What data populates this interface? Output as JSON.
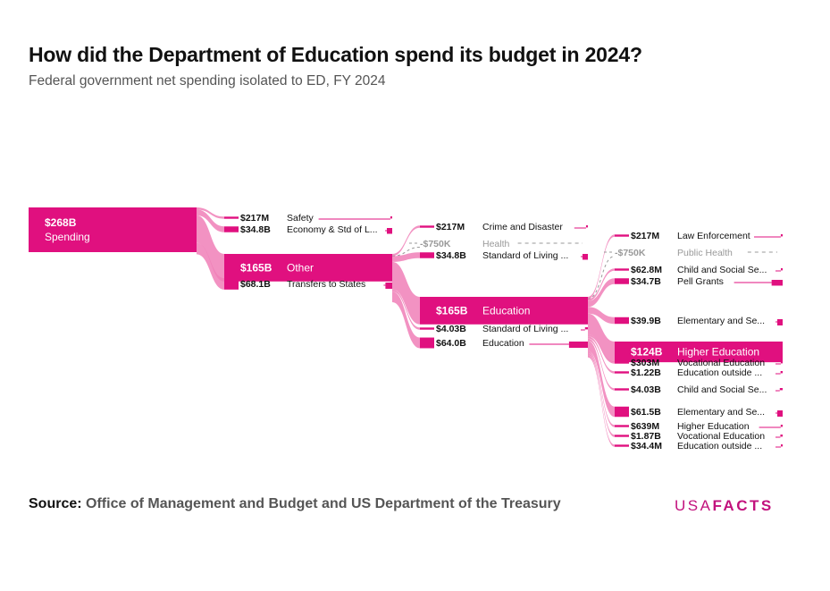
{
  "header": {
    "title": "How did the Department of Education spend its budget in 2024?",
    "subtitle": "Federal government net spending isolated to ED, FY 2024"
  },
  "footer": {
    "source_label": "Source:",
    "source_text": "Office of Management and Budget and US Department of the Treasury",
    "logo_light": "USA",
    "logo_bold": "FACTS"
  },
  "colors": {
    "primary": "#e0107f",
    "link": "#f07fb7",
    "neutral": "#999999",
    "label": "#111111"
  },
  "chart_data": {
    "type": "sankey",
    "root": {
      "label": "Spending",
      "value": 268000000000.0,
      "display": "$268B"
    },
    "levels": [
      [
        {
          "id": "safety",
          "label": "Safety",
          "display": "$217M",
          "value": 217000000.0
        },
        {
          "id": "econ",
          "label": "Economy & Std of L...",
          "display": "$34.8B",
          "value": 34800000000.0
        },
        {
          "id": "other",
          "label": "Other",
          "display": "$165B",
          "value": 165000000000.0,
          "expanded": true
        },
        {
          "id": "transfers",
          "label": "Transfers to States",
          "display": "$68.1B",
          "value": 68100000000.0
        }
      ],
      [
        {
          "id": "crime",
          "label": "Crime and Disaster",
          "display": "$217M",
          "value": 217000000.0
        },
        {
          "id": "health",
          "label": "Health",
          "display": "-$750K",
          "value": -750000.0,
          "negative": true
        },
        {
          "id": "sol1",
          "label": "Standard of Living ...",
          "display": "$34.8B",
          "value": 34800000000.0
        },
        {
          "id": "education",
          "label": "Education",
          "display": "$165B",
          "value": 165000000000.0,
          "expanded": true
        },
        {
          "id": "sol2",
          "label": "Standard of Living ...",
          "display": "$4.03B",
          "value": 4030000000.0
        },
        {
          "id": "edu2",
          "label": "Education",
          "display": "$64.0B",
          "value": 64000000000.0
        }
      ],
      [
        {
          "id": "law",
          "label": "Law Enforcement",
          "display": "$217M",
          "value": 217000000.0
        },
        {
          "id": "pubhealth",
          "label": "Public Health",
          "display": "-$750K",
          "value": -750000.0,
          "negative": true
        },
        {
          "id": "child1",
          "label": "Child and Social Se...",
          "display": "$62.8M",
          "value": 62800000.0
        },
        {
          "id": "pell",
          "label": "Pell Grants",
          "display": "$34.7B",
          "value": 34700000000.0
        },
        {
          "id": "elem1",
          "label": "Elementary and Se...",
          "display": "$39.9B",
          "value": 39900000000.0
        },
        {
          "id": "higher1",
          "label": "Higher Education",
          "display": "$124B",
          "value": 124000000000.0,
          "expanded": true
        },
        {
          "id": "voc1",
          "label": "Vocational Education",
          "display": "$303M",
          "value": 303000000.0
        },
        {
          "id": "eduout1",
          "label": "Education outside ...",
          "display": "$1.22B",
          "value": 1220000000.0
        },
        {
          "id": "child2",
          "label": "Child and Social Se...",
          "display": "$4.03B",
          "value": 4030000000.0
        },
        {
          "id": "elem2",
          "label": "Elementary and Se...",
          "display": "$61.5B",
          "value": 61500000000.0
        },
        {
          "id": "higher2",
          "label": "Higher Education",
          "display": "$639M",
          "value": 639000000.0
        },
        {
          "id": "voc2",
          "label": "Vocational Education",
          "display": "$1.87B",
          "value": 1870000000.0
        },
        {
          "id": "eduout2",
          "label": "Education outside ...",
          "display": "$34.4M",
          "value": 34400000.0
        }
      ]
    ],
    "links": [
      [
        "root",
        "safety"
      ],
      [
        "root",
        "econ"
      ],
      [
        "root",
        "other"
      ],
      [
        "root",
        "transfers"
      ],
      [
        "other",
        "crime"
      ],
      [
        "other",
        "health"
      ],
      [
        "other",
        "sol1"
      ],
      [
        "other",
        "education"
      ],
      [
        "other",
        "sol2"
      ],
      [
        "other",
        "edu2"
      ],
      [
        "education",
        "law"
      ],
      [
        "education",
        "pubhealth"
      ],
      [
        "education",
        "child1"
      ],
      [
        "education",
        "pell"
      ],
      [
        "education",
        "elem1"
      ],
      [
        "education",
        "higher1"
      ],
      [
        "education",
        "voc1"
      ],
      [
        "education",
        "eduout1"
      ],
      [
        "education",
        "child2"
      ],
      [
        "education",
        "elem2"
      ],
      [
        "education",
        "higher2"
      ],
      [
        "education",
        "voc2"
      ],
      [
        "education",
        "eduout2"
      ]
    ]
  }
}
